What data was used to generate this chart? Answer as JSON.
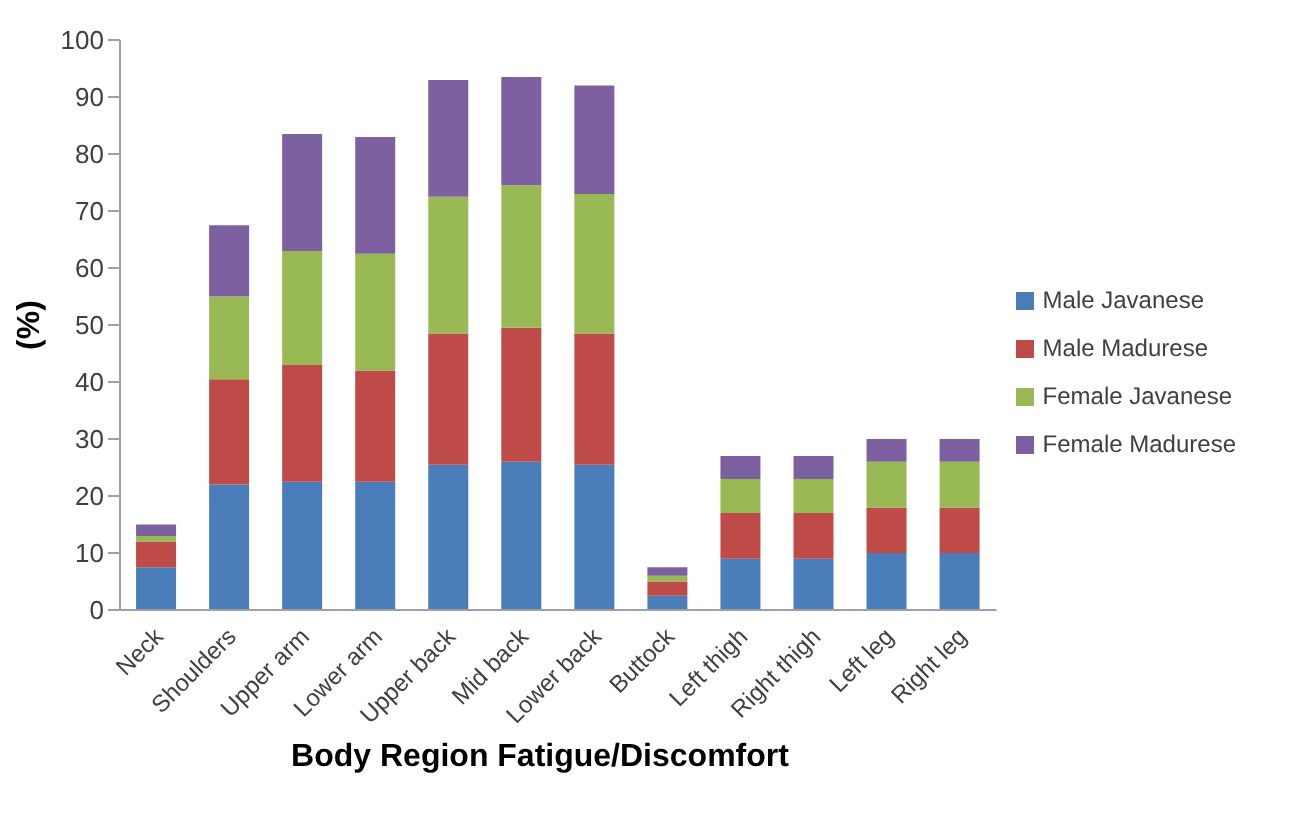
{
  "chart_data": {
    "type": "bar",
    "stacked": true,
    "xlabel": "Body Region Fatigue/Discomfort",
    "ylabel": "(%)",
    "categories": [
      "Neck",
      "Shoulders",
      "Upper arm",
      "Lower arm",
      "Upper back",
      "Mid back",
      "Lower back",
      "Buttock",
      "Left thigh",
      "Right thigh",
      "Left leg",
      "Right leg"
    ],
    "series": [
      {
        "name": "Male Javanese",
        "color": "#4a7ebb",
        "values": [
          7.5,
          22,
          22.5,
          22.5,
          25.5,
          26,
          25.5,
          2.5,
          9,
          9,
          10,
          10
        ]
      },
      {
        "name": "Male Madurese",
        "color": "#be4b48",
        "values": [
          4.5,
          18.5,
          20.5,
          19.5,
          23,
          23.5,
          23,
          2.5,
          8,
          8,
          8,
          8
        ]
      },
      {
        "name": "Female Javanese",
        "color": "#98b954",
        "values": [
          1,
          14.5,
          20,
          20.5,
          24,
          25,
          24.5,
          1,
          6,
          6,
          8,
          8
        ]
      },
      {
        "name": "Female Madurese",
        "color": "#7d60a0",
        "values": [
          2,
          12.5,
          20.5,
          20.5,
          20.5,
          19,
          19,
          1.5,
          4,
          4,
          4,
          4
        ]
      }
    ],
    "ylim": [
      0,
      100
    ],
    "yticks": [
      0,
      10,
      20,
      30,
      40,
      50,
      60,
      70,
      80,
      90,
      100
    ],
    "legend": "right",
    "grid": false
  }
}
